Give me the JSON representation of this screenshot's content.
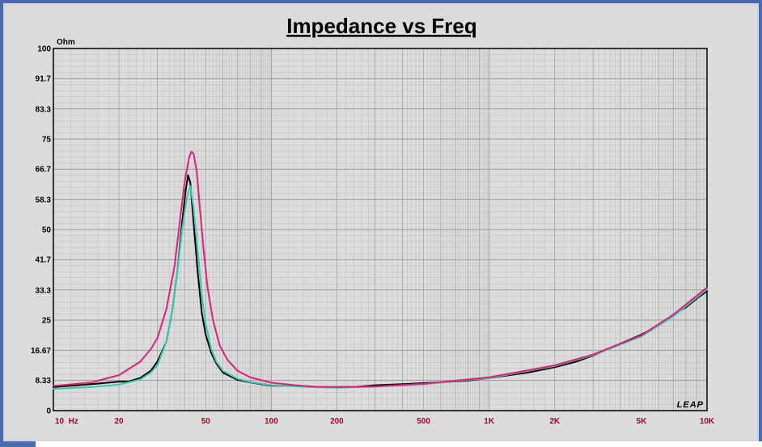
{
  "colors": {
    "background": "#dcdcdc",
    "frame": "#4a6bb0",
    "grid": "#9a9a9a",
    "x_tick_labels": "#b0002a",
    "series_black": "#000000",
    "series_cyan": "#3cc8b0",
    "series_magenta": "#e0207a"
  },
  "chart_data": {
    "type": "line",
    "title": "Impedance vs Freq",
    "ylabel": "Ohm",
    "xlabel": "",
    "x_scale": "log",
    "xlim": [
      10,
      10000
    ],
    "ylim": [
      0,
      100
    ],
    "grid": true,
    "logo": "LEAP",
    "y_ticks": [
      0,
      8.33,
      16.67,
      25,
      33.3,
      41.7,
      50,
      58.3,
      66.7,
      75,
      83.3,
      91.7,
      100
    ],
    "y_tick_labels": [
      "0",
      "8.33",
      "16.67",
      "25",
      "33.3",
      "41.7",
      "50",
      "58.3",
      "66.7",
      "75",
      "83.3",
      "91.7",
      "100"
    ],
    "x_ticks": [
      10,
      20,
      50,
      100,
      200,
      500,
      1000,
      2000,
      5000,
      10000
    ],
    "x_tick_labels": [
      "10  Hz",
      "20",
      "50",
      "100",
      "200",
      "500",
      "1K",
      "2K",
      "5K",
      "10K"
    ],
    "series": [
      {
        "color": "#000000",
        "points": [
          [
            10,
            6.5
          ],
          [
            15,
            7.3
          ],
          [
            20,
            8.0
          ],
          [
            22,
            8.0
          ],
          [
            25,
            9.0
          ],
          [
            28,
            11.0
          ],
          [
            30,
            13.5
          ],
          [
            33,
            19
          ],
          [
            35,
            27
          ],
          [
            37,
            38
          ],
          [
            39,
            52
          ],
          [
            40.5,
            61
          ],
          [
            41.5,
            65
          ],
          [
            42.5,
            63
          ],
          [
            44,
            52
          ],
          [
            46,
            38
          ],
          [
            48,
            27
          ],
          [
            50,
            21
          ],
          [
            53,
            16
          ],
          [
            56,
            13
          ],
          [
            60,
            10.5
          ],
          [
            70,
            8.5
          ],
          [
            80,
            7.8
          ],
          [
            90,
            7.3
          ],
          [
            100,
            6.9
          ],
          [
            130,
            6.8
          ],
          [
            160,
            6.5
          ],
          [
            200,
            6.5
          ],
          [
            250,
            6.6
          ],
          [
            300,
            7.0
          ],
          [
            400,
            7.3
          ],
          [
            500,
            7.6
          ],
          [
            600,
            7.8
          ],
          [
            800,
            8.3
          ],
          [
            1000,
            9.0
          ],
          [
            1500,
            10.5
          ],
          [
            2000,
            12.0
          ],
          [
            2500,
            13.5
          ],
          [
            3000,
            15.2
          ],
          [
            4000,
            18.5
          ],
          [
            5000,
            21.0
          ],
          [
            6000,
            23.5
          ],
          [
            7000,
            26.5
          ],
          [
            8000,
            28.5
          ],
          [
            9000,
            31.0
          ],
          [
            10000,
            33.0
          ]
        ]
      },
      {
        "color": "#3cc8b0",
        "points": [
          [
            10,
            6.0
          ],
          [
            15,
            6.5
          ],
          [
            20,
            7.2
          ],
          [
            25,
            8.6
          ],
          [
            28,
            10.5
          ],
          [
            30,
            12.5
          ],
          [
            33,
            19
          ],
          [
            35,
            27
          ],
          [
            37,
            38
          ],
          [
            39,
            50
          ],
          [
            41,
            59
          ],
          [
            42.5,
            62
          ],
          [
            44,
            56
          ],
          [
            46,
            44
          ],
          [
            48,
            32
          ],
          [
            50,
            24
          ],
          [
            53,
            17
          ],
          [
            56,
            13.5
          ],
          [
            60,
            11
          ],
          [
            70,
            8.8
          ],
          [
            80,
            7.9
          ],
          [
            100,
            7.0
          ],
          [
            150,
            6.5
          ],
          [
            200,
            6.3
          ],
          [
            300,
            6.6
          ],
          [
            500,
            7.3
          ],
          [
            1000,
            9.0
          ],
          [
            2000,
            12.3
          ],
          [
            3000,
            15.3
          ],
          [
            5000,
            20.5
          ],
          [
            7000,
            26.0
          ],
          [
            10000,
            33.5
          ]
        ]
      },
      {
        "color": "#e0207a",
        "points": [
          [
            10,
            6.8
          ],
          [
            15,
            7.8
          ],
          [
            20,
            9.8
          ],
          [
            25,
            13.5
          ],
          [
            28,
            17
          ],
          [
            30,
            20
          ],
          [
            33,
            28
          ],
          [
            36,
            40
          ],
          [
            38,
            52
          ],
          [
            40,
            63
          ],
          [
            42,
            70
          ],
          [
            43,
            71.5
          ],
          [
            44,
            71
          ],
          [
            45.5,
            66
          ],
          [
            47,
            56
          ],
          [
            49,
            44
          ],
          [
            51,
            34
          ],
          [
            54,
            25
          ],
          [
            58,
            18
          ],
          [
            63,
            14
          ],
          [
            70,
            11
          ],
          [
            80,
            9.2
          ],
          [
            100,
            7.7
          ],
          [
            130,
            7.0
          ],
          [
            160,
            6.6
          ],
          [
            200,
            6.5
          ],
          [
            300,
            6.7
          ],
          [
            500,
            7.4
          ],
          [
            1000,
            9.2
          ],
          [
            2000,
            12.5
          ],
          [
            3000,
            15.5
          ],
          [
            5000,
            20.8
          ],
          [
            7000,
            26.5
          ],
          [
            10000,
            34.0
          ]
        ]
      }
    ]
  }
}
